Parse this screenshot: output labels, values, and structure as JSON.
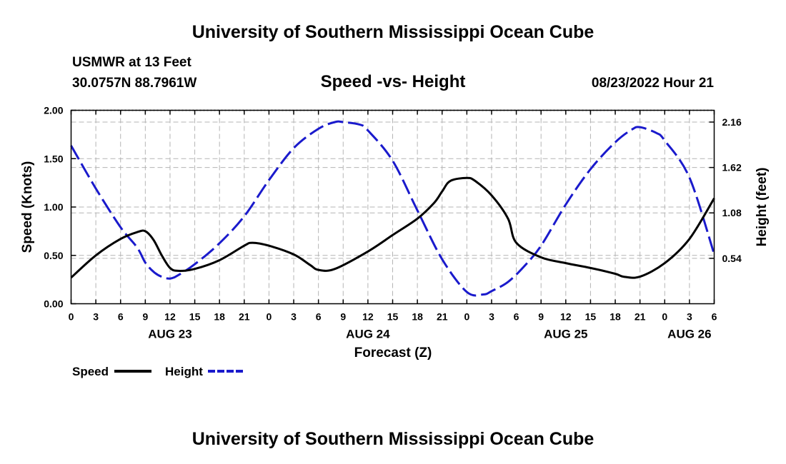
{
  "header": {
    "title": "University of Southern Mississippi Ocean Cube",
    "station": "USMWR at 13 Feet",
    "coords": "30.0757N  88.7961W",
    "plot_title": "Speed -vs- Height",
    "datetime": "08/23/2022 Hour 21"
  },
  "footer": {
    "title": "University of Southern Mississippi Ocean Cube"
  },
  "colors": {
    "speed": "#000000",
    "height": "#1a1acc",
    "grid": "#b4b4b4"
  },
  "chart_data": {
    "type": "line",
    "title": "Speed -vs- Height",
    "xlabel": "Forecast (Z)",
    "ylabel": "Speed (Knots)",
    "y2label": "Height (feet)",
    "x_unit": "hours since AUG 23 00Z",
    "xlim": [
      0,
      78
    ],
    "ylim": [
      0,
      2.0
    ],
    "y2lim": [
      0,
      2.3
    ],
    "x_ticks": [
      0,
      3,
      6,
      9,
      12,
      15,
      18,
      21,
      24,
      27,
      30,
      33,
      36,
      39,
      42,
      45,
      48,
      51,
      54,
      57,
      60,
      63,
      66,
      69,
      72,
      75,
      78
    ],
    "x_tick_labels": [
      "0",
      "3",
      "6",
      "9",
      "12",
      "15",
      "18",
      "21",
      "0",
      "3",
      "6",
      "9",
      "12",
      "15",
      "18",
      "21",
      "0",
      "3",
      "6",
      "9",
      "12",
      "15",
      "18",
      "21",
      "0",
      "3",
      "6"
    ],
    "date_labels": [
      {
        "x": 12,
        "label": "AUG 23"
      },
      {
        "x": 36,
        "label": "AUG 24"
      },
      {
        "x": 60,
        "label": "AUG 25"
      },
      {
        "x": 75,
        "label": "AUG 26"
      }
    ],
    "y_ticks": [
      0,
      0.5,
      1.0,
      1.5,
      2.0
    ],
    "y_tick_labels": [
      "0.00",
      "0.50",
      "1.00",
      "1.50",
      "2.00"
    ],
    "y2_ticks": [
      0.54,
      1.08,
      1.62,
      2.16
    ],
    "y2_tick_labels": [
      "0.54",
      "1.08",
      "1.62",
      "2.16"
    ],
    "grid": true,
    "legend_position": "bottom-left",
    "series": [
      {
        "name": "Speed",
        "axis": "left",
        "style": "solid",
        "x": [
          0,
          3,
          6,
          8,
          9,
          10,
          11,
          12,
          13,
          15,
          18,
          21,
          22,
          24,
          27,
          29,
          30,
          32,
          36,
          39,
          42,
          44,
          45,
          46,
          48,
          49,
          51,
          53,
          54,
          57,
          60,
          63,
          66,
          67,
          69,
          72,
          75,
          78
        ],
        "y": [
          0.27,
          0.5,
          0.67,
          0.74,
          0.75,
          0.66,
          0.5,
          0.37,
          0.34,
          0.36,
          0.45,
          0.6,
          0.63,
          0.6,
          0.51,
          0.4,
          0.35,
          0.36,
          0.54,
          0.71,
          0.88,
          1.04,
          1.16,
          1.27,
          1.3,
          1.27,
          1.12,
          0.88,
          0.63,
          0.48,
          0.42,
          0.37,
          0.31,
          0.28,
          0.28,
          0.42,
          0.67,
          1.09
        ]
      },
      {
        "name": "Height",
        "axis": "right",
        "style": "dashed",
        "x": [
          0,
          3,
          6,
          8,
          9,
          10,
          11,
          12,
          13,
          15,
          18,
          21,
          24,
          27,
          30,
          32,
          33,
          35,
          36,
          39,
          42,
          45,
          48,
          50,
          51,
          53,
          55,
          57,
          60,
          63,
          66,
          68,
          69,
          71,
          72,
          75,
          78
        ],
        "y": [
          1.88,
          1.37,
          0.91,
          0.67,
          0.49,
          0.38,
          0.32,
          0.3,
          0.34,
          0.47,
          0.72,
          1.04,
          1.47,
          1.85,
          2.08,
          2.16,
          2.16,
          2.13,
          2.06,
          1.7,
          1.11,
          0.53,
          0.14,
          0.11,
          0.15,
          0.26,
          0.45,
          0.69,
          1.18,
          1.6,
          1.92,
          2.07,
          2.1,
          2.03,
          1.94,
          1.5,
          0.59
        ]
      }
    ]
  }
}
